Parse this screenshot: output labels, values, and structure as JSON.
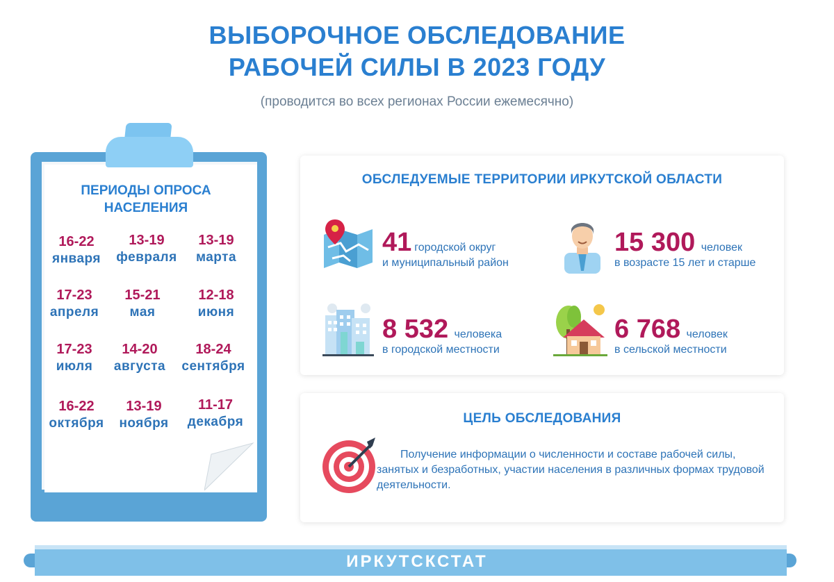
{
  "header": {
    "title_line1": "ВЫБОРОЧНОЕ ОБСЛЕДОВАНИЕ",
    "title_line2": "РАБОЧЕЙ СИЛЫ В 2023 ГОДУ",
    "subtitle": "(проводится во всех регионах России ежемесячно)"
  },
  "periods": {
    "title_line1": "ПЕРИОДЫ ОПРОСА",
    "title_line2": "НАСЕЛЕНИЯ",
    "items": [
      {
        "dates": "16-22",
        "month": "января"
      },
      {
        "dates": "13-19",
        "month": "февраля"
      },
      {
        "dates": "13-19",
        "month": "марта"
      },
      {
        "dates": "17-23",
        "month": "апреля"
      },
      {
        "dates": "15-21",
        "month": "мая"
      },
      {
        "dates": "12-18",
        "month": "июня"
      },
      {
        "dates": "17-23",
        "month": "июля"
      },
      {
        "dates": "14-20",
        "month": "августа"
      },
      {
        "dates": "18-24",
        "month": "сентября"
      },
      {
        "dates": "16-22",
        "month": "октября"
      },
      {
        "dates": "13-19",
        "month": "ноября"
      },
      {
        "dates": "11-17",
        "month": "декабря"
      }
    ]
  },
  "territories": {
    "title": "ОБСЛЕДУЕМЫЕ ТЕРРИТОРИИ ИРКУТСКОЙ ОБЛАСТИ",
    "districts": {
      "num": "41",
      "unit": "городской округ",
      "desc": "и муниципальный район"
    },
    "total": {
      "num": "15 300",
      "unit": "человек",
      "desc": "в возрасте 15 лет и старше"
    },
    "urban": {
      "num": "8 532",
      "unit": "человека",
      "desc": "в городской местности"
    },
    "rural": {
      "num": "6 768",
      "unit": "человек",
      "desc": "в сельской местности"
    }
  },
  "goal": {
    "title": "ЦЕЛЬ ОБСЛЕДОВАНИЯ",
    "text": "Получение информации о численности и составе рабочей силы, занятых и безработных, участии населения в различных формах трудовой деятельности."
  },
  "footer": {
    "org": "ИРКУТСКСТАТ"
  },
  "colors": {
    "primary_blue": "#2a7fd0",
    "accent_crimson": "#b0195a",
    "clipboard_blue": "#5aa4d6"
  },
  "icons": [
    "map-pin-icon",
    "person-icon",
    "city-buildings-icon",
    "village-house-icon",
    "target-icon"
  ]
}
